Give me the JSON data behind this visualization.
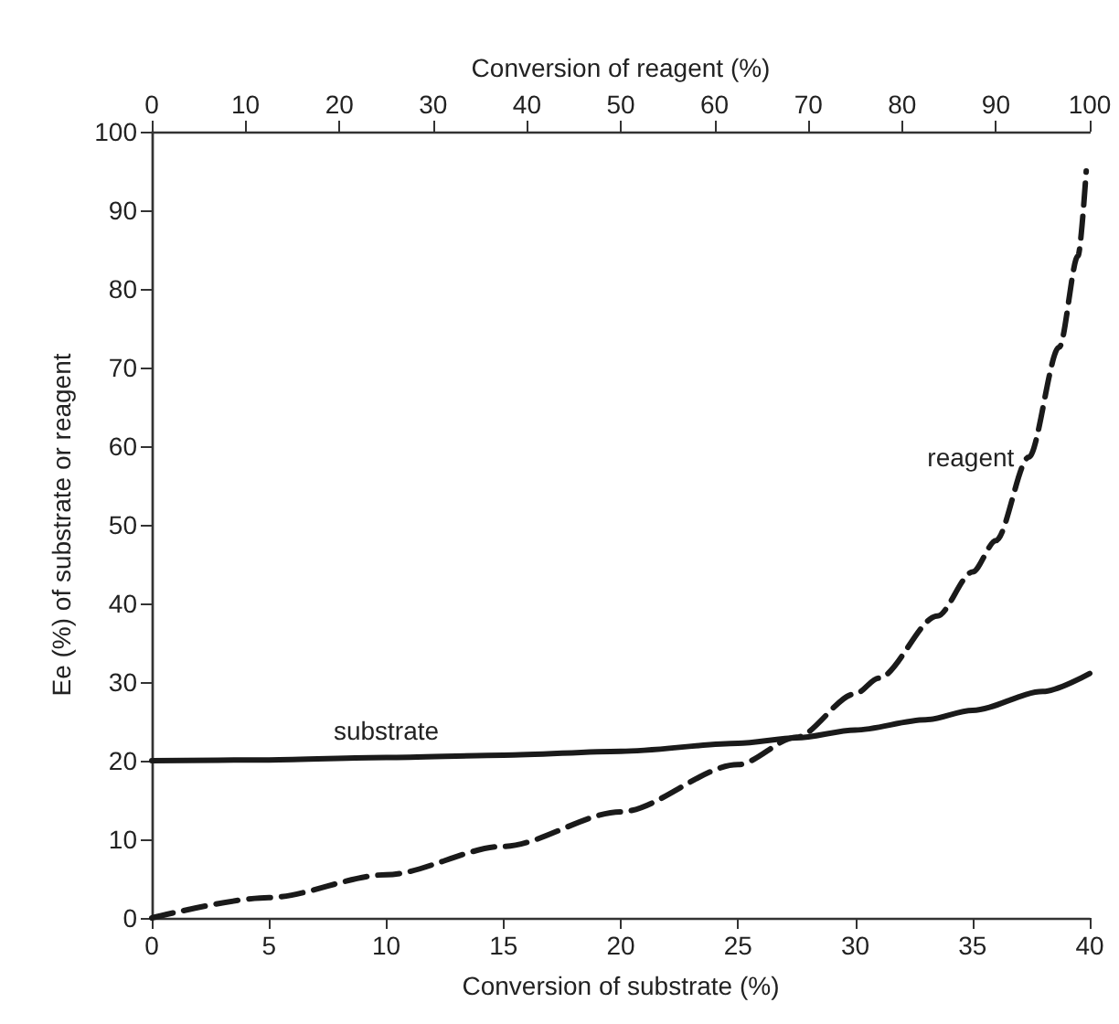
{
  "chart_data": {
    "type": "line",
    "xlabel": "Conversion of substrate (%)",
    "x2label": "Conversion of reagent (%)",
    "ylabel": "Ee (%) of substrate or reagent",
    "xlim": [
      0,
      40
    ],
    "xticks": [
      0,
      5,
      10,
      15,
      20,
      25,
      30,
      35,
      40
    ],
    "x2lim": [
      0,
      100
    ],
    "x2ticks": [
      0,
      10,
      20,
      30,
      40,
      50,
      60,
      70,
      80,
      90,
      100
    ],
    "ylim": [
      0,
      100
    ],
    "yticks": [
      0,
      10,
      20,
      30,
      40,
      50,
      60,
      70,
      80,
      90,
      100
    ],
    "grid": false,
    "legend": false,
    "marker": "none",
    "series": [
      {
        "name": "substrate",
        "color": "#1a1a1a",
        "line_style": "solid",
        "x": [
          0,
          5,
          10,
          15,
          20,
          25,
          27.5,
          30,
          33,
          35,
          38,
          40
        ],
        "values": [
          20,
          20.1,
          20.4,
          20.7,
          21.2,
          22.2,
          22.9,
          23.9,
          25.2,
          26.4,
          28.8,
          31.1
        ]
      },
      {
        "name": "reagent",
        "color": "#1a1a1a",
        "line_style": "dashed",
        "x": [
          0,
          5,
          10,
          15,
          20,
          25,
          27.5,
          30,
          31,
          33.5,
          35,
          36,
          37.4,
          38.7,
          39.5,
          39.85
        ],
        "values": [
          0,
          2.6,
          5.5,
          9.1,
          13.5,
          19.5,
          23,
          28.5,
          30.5,
          38.4,
          44,
          48,
          58.6,
          72.6,
          84.2,
          95
        ]
      }
    ]
  }
}
